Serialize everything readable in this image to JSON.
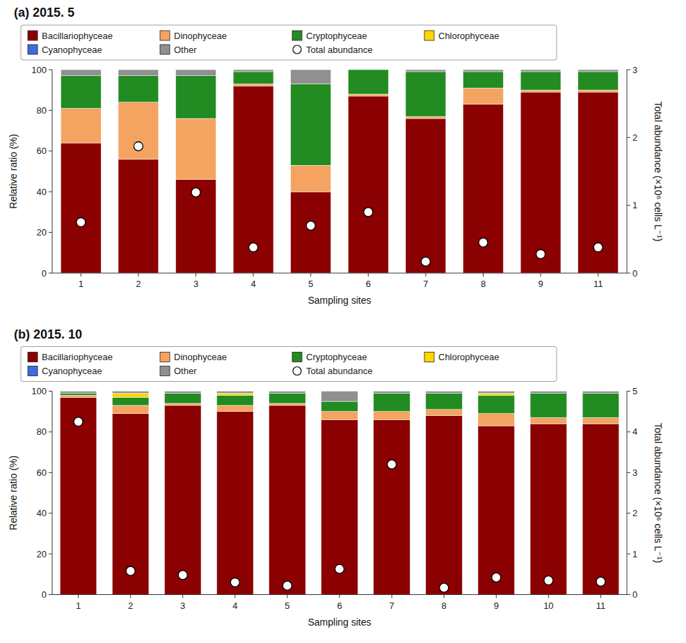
{
  "chart_data": [
    {
      "type": "bar",
      "stacked": true,
      "title": "(a) 2015. 5",
      "x_label": "Sampling sites",
      "y_label": "Relative ratio (%)",
      "y2_label": "Total abundance (×10⁶ cells L⁻¹)",
      "categories": [
        "1",
        "2",
        "3",
        "4",
        "5",
        "6",
        "7",
        "8",
        "9",
        "11"
      ],
      "ylim": [
        0,
        100
      ],
      "yticks": [
        0,
        20,
        40,
        60,
        80,
        100
      ],
      "y2lim": [
        0,
        3
      ],
      "y2ticks": [
        0,
        1,
        2,
        3
      ],
      "grid": false,
      "legend": "top",
      "series": [
        {
          "name": "Bacillariophyceae",
          "color": "#8B0000",
          "values": [
            64,
            56,
            46,
            92,
            40,
            87,
            76,
            83,
            89,
            89
          ]
        },
        {
          "name": "Dinophyceae",
          "color": "#F4A460",
          "values": [
            17,
            28,
            30,
            1,
            13,
            1,
            1,
            8,
            1,
            1
          ]
        },
        {
          "name": "Cryptophyceae",
          "color": "#228B22",
          "values": [
            16,
            13,
            21,
            6,
            40,
            12,
            22,
            8,
            9,
            9
          ]
        },
        {
          "name": "Chlorophyceae",
          "color": "#FFD700",
          "values": [
            0,
            0,
            0,
            0,
            0,
            0,
            0,
            0,
            0,
            0
          ]
        },
        {
          "name": "Cyanophyceae",
          "color": "#4169E1",
          "values": [
            0,
            0,
            0,
            0,
            0,
            0,
            0,
            0,
            0,
            0
          ]
        },
        {
          "name": "Other",
          "color": "#909090",
          "values": [
            3,
            3,
            3,
            1,
            7,
            0,
            1,
            1,
            1,
            1
          ]
        },
        {
          "name": "Total abundance",
          "type": "scatter",
          "axis": "y2",
          "marker": "circle",
          "color": "#ffffff",
          "values": [
            0.75,
            1.87,
            1.19,
            0.38,
            0.7,
            0.9,
            0.17,
            0.45,
            0.28,
            0.38
          ]
        }
      ]
    },
    {
      "type": "bar",
      "stacked": true,
      "title": "(b) 2015. 10",
      "x_label": "Sampling sites",
      "y_label": "Relative ratio (%)",
      "y2_label": "Total abundance (×10⁶ cells L⁻¹)",
      "categories": [
        "1",
        "2",
        "3",
        "4",
        "5",
        "6",
        "7",
        "8",
        "9",
        "10",
        "11"
      ],
      "ylim": [
        0,
        100
      ],
      "yticks": [
        0,
        20,
        40,
        60,
        80,
        100
      ],
      "y2lim": [
        0,
        5
      ],
      "y2ticks": [
        0,
        1,
        2,
        3,
        4,
        5
      ],
      "grid": false,
      "legend": "top",
      "series": [
        {
          "name": "Bacillariophyceae",
          "color": "#8B0000",
          "values": [
            97,
            89,
            93,
            90,
            93,
            86,
            86,
            88,
            83,
            84,
            84
          ]
        },
        {
          "name": "Dinophyceae",
          "color": "#F4A460",
          "values": [
            1,
            4,
            1,
            3,
            1,
            4,
            4,
            3,
            6,
            3,
            3
          ]
        },
        {
          "name": "Cryptophyceae",
          "color": "#228B22",
          "values": [
            1,
            4,
            5,
            5,
            5,
            5,
            9,
            8,
            9,
            12,
            12
          ]
        },
        {
          "name": "Chlorophyceae",
          "color": "#FFD700",
          "values": [
            0,
            2,
            0,
            1,
            0,
            0,
            0,
            0,
            1,
            0,
            0
          ]
        },
        {
          "name": "Cyanophyceae",
          "color": "#4169E1",
          "values": [
            0,
            0,
            0,
            0,
            0,
            0,
            0,
            0,
            0,
            0,
            0
          ]
        },
        {
          "name": "Other",
          "color": "#909090",
          "values": [
            1,
            1,
            1,
            1,
            1,
            5,
            1,
            1,
            1,
            1,
            1
          ]
        },
        {
          "name": "Total abundance",
          "type": "scatter",
          "axis": "y2",
          "marker": "circle",
          "color": "#ffffff",
          "values": [
            4.25,
            0.58,
            0.48,
            0.3,
            0.22,
            0.63,
            3.2,
            0.17,
            0.42,
            0.35,
            0.32
          ]
        }
      ]
    }
  ]
}
